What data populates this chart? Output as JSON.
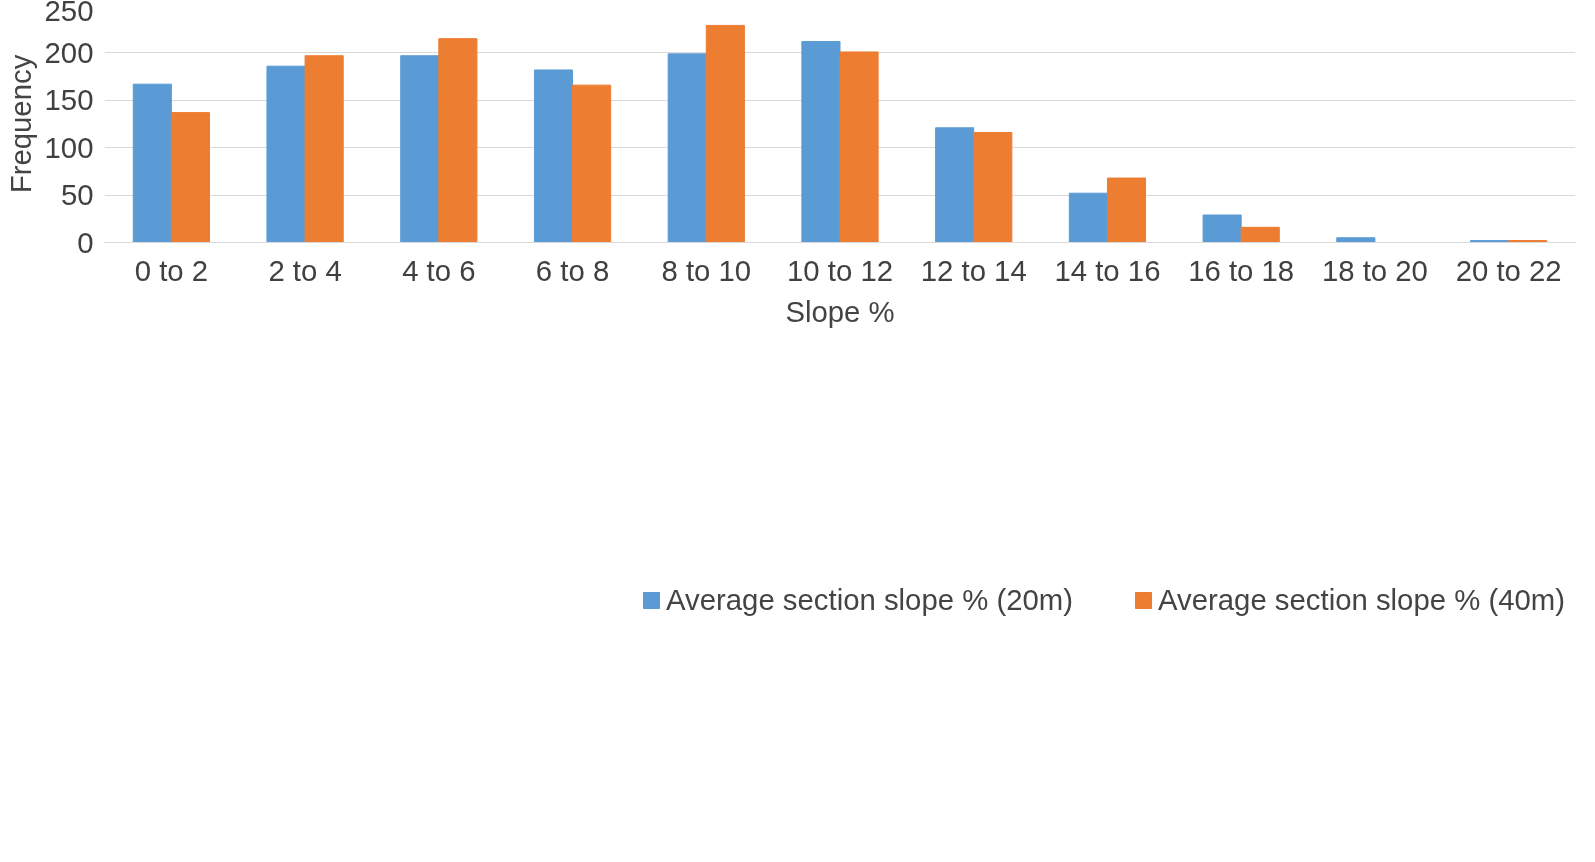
{
  "chart_data": {
    "type": "bar",
    "xlabel": "Slope %",
    "ylabel": "Frequency",
    "categories": [
      "0 to 2",
      "2 to 4",
      "4 to 6",
      "6 to 8",
      "8 to 10",
      "10 to 12",
      "12 to 14",
      "14 to 16",
      "16 to 18",
      "18 to 20",
      "20 to 22"
    ],
    "series": [
      {
        "name": "Average section slope % (20m)",
        "color": "#5b9bd5",
        "values": [
          167,
          186,
          197,
          182,
          199,
          212,
          121,
          52,
          29,
          5,
          2
        ]
      },
      {
        "name": "Average section slope % (40m)",
        "color": "#ed7d31",
        "values": [
          137,
          197,
          215,
          166,
          229,
          201,
          116,
          68,
          16,
          0,
          2
        ]
      }
    ],
    "ylim": [
      0,
      250
    ],
    "yticks": [
      0,
      50,
      100,
      150,
      200,
      250
    ],
    "grid": "y",
    "legend": "bottom"
  }
}
